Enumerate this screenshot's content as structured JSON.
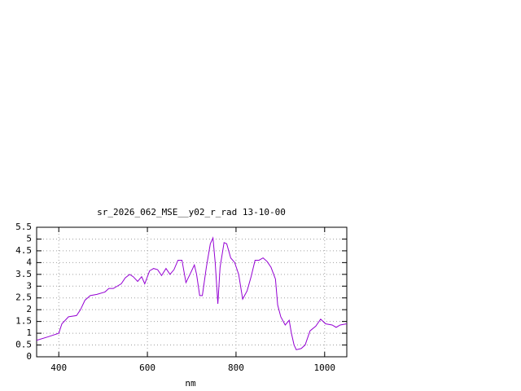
{
  "chart_data": {
    "type": "line",
    "title": "sr_2026_062_MSE__y02_r_rad 13-10-00",
    "x_label": "nm",
    "x": [
      350,
      376,
      400,
      407,
      422,
      440,
      449,
      459,
      471,
      486,
      504,
      513,
      523,
      541,
      550,
      560,
      568,
      578,
      587,
      594,
      605,
      614,
      623,
      632,
      642,
      651,
      660,
      669,
      678,
      687,
      696,
      706,
      711,
      718,
      724,
      733,
      742,
      748,
      753,
      759,
      764,
      773,
      779,
      788,
      797,
      806,
      815,
      825,
      834,
      843,
      852,
      861,
      870,
      879,
      889,
      894,
      901,
      911,
      920,
      925,
      931,
      936,
      947,
      956,
      967,
      980,
      991,
      1002,
      1017,
      1026,
      1035,
      1050
    ],
    "series": [
      {
        "color": "#9400d3",
        "values": [
          0.7,
          0.85,
          1.0,
          1.4,
          1.7,
          1.75,
          2.0,
          2.4,
          2.6,
          2.65,
          2.75,
          2.9,
          2.9,
          3.1,
          3.35,
          3.5,
          3.4,
          3.2,
          3.4,
          3.1,
          3.65,
          3.75,
          3.7,
          3.45,
          3.75,
          3.5,
          3.7,
          4.1,
          4.1,
          3.15,
          3.5,
          3.9,
          3.5,
          2.6,
          2.6,
          3.8,
          4.8,
          5.05,
          4.0,
          2.25,
          3.8,
          4.85,
          4.8,
          4.2,
          4.0,
          3.5,
          2.45,
          2.8,
          3.4,
          4.1,
          4.1,
          4.2,
          4.05,
          3.8,
          3.3,
          2.2,
          1.7,
          1.35,
          1.55,
          1.0,
          0.5,
          0.3,
          0.35,
          0.5,
          1.1,
          1.3,
          1.6,
          1.4,
          1.35,
          1.25,
          1.35,
          1.4
        ]
      }
    ],
    "xlim": [
      350,
      1050
    ],
    "xticks": [
      400,
      600,
      800,
      1000
    ],
    "ylim": [
      0,
      5.5
    ],
    "yticks": [
      0,
      0.5,
      1,
      1.5,
      2,
      2.5,
      3,
      3.5,
      4,
      4.5,
      5,
      5.5
    ],
    "grid": true
  }
}
